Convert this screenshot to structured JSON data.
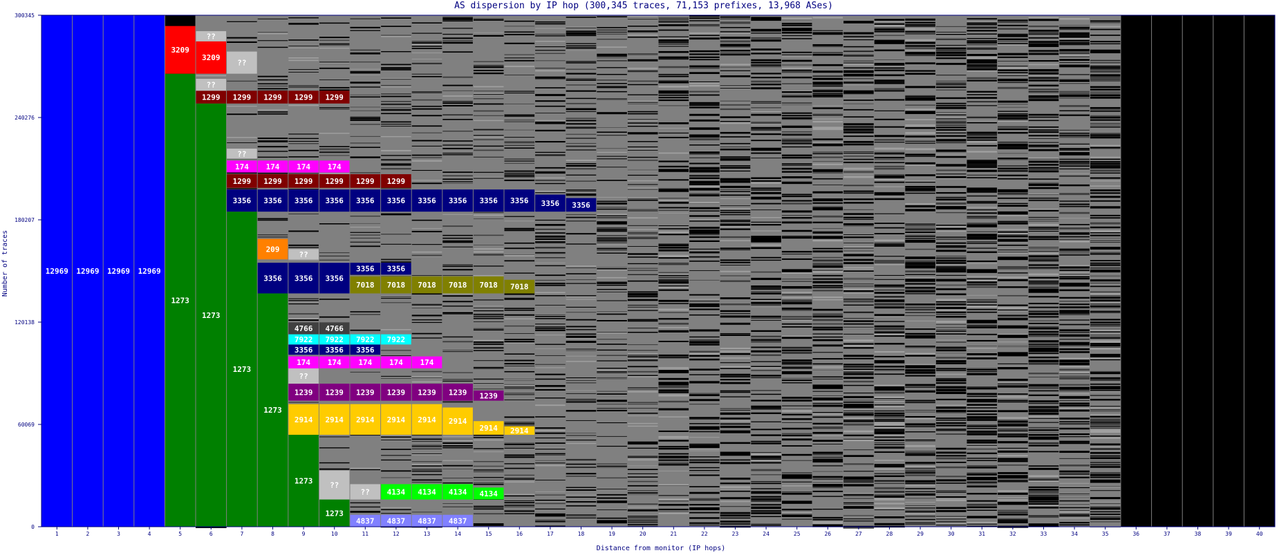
{
  "chart_data": {
    "type": "bar",
    "subtype": "stacked-segment dispersion",
    "title": "AS dispersion by IP hop (300,345 traces, 71,153 prefixes, 13,968 ASes)",
    "xlabel": "Distance from monitor (IP hops)",
    "ylabel": "Number of traces",
    "x": [
      1,
      2,
      3,
      4,
      5,
      6,
      7,
      8,
      9,
      10,
      11,
      12,
      13,
      14,
      15,
      16,
      17,
      18,
      19,
      20,
      21,
      22,
      23,
      24,
      25,
      26,
      27,
      28,
      29,
      30,
      31,
      32,
      33,
      34,
      35,
      36,
      37,
      38,
      39,
      40
    ],
    "ylim": [
      0,
      300345
    ],
    "yticks": [
      "0",
      "60069",
      "120138",
      "180207",
      "240276",
      "300345"
    ],
    "background_color": "#000000",
    "default_fill_color": "#808080",
    "labeled_segments": [
      {
        "hop": 1,
        "label": "12969",
        "from": 0,
        "to": 300345,
        "color": "#0000ff"
      },
      {
        "hop": 2,
        "label": "12969",
        "from": 0,
        "to": 300345,
        "color": "#0000ff"
      },
      {
        "hop": 3,
        "label": "12969",
        "from": 0,
        "to": 300345,
        "color": "#0000ff"
      },
      {
        "hop": 4,
        "label": "12969",
        "from": 0,
        "to": 300345,
        "color": "#0000ff"
      },
      {
        "hop": 5,
        "label": "1273",
        "from": 0,
        "to": 266000,
        "color": "#008000"
      },
      {
        "hop": 5,
        "label": "3209",
        "from": 266000,
        "to": 294000,
        "color": "#ff0000"
      },
      {
        "hop": 6,
        "label": "1273",
        "from": 0,
        "to": 248500,
        "color": "#008000"
      },
      {
        "hop": 6,
        "label": "1299",
        "from": 248500,
        "to": 256000,
        "color": "#800000"
      },
      {
        "hop": 6,
        "label": "??",
        "from": 256000,
        "to": 263000,
        "color": "#c0c0c0"
      },
      {
        "hop": 6,
        "label": "3209",
        "from": 266000,
        "to": 285000,
        "color": "#ff0000"
      },
      {
        "hop": 6,
        "label": "??",
        "from": 285000,
        "to": 291000,
        "color": "#c0c0c0"
      },
      {
        "hop": 7,
        "label": "1273",
        "from": 0,
        "to": 185000,
        "color": "#008000"
      },
      {
        "hop": 7,
        "label": "3356",
        "from": 185000,
        "to": 198000,
        "color": "#000080"
      },
      {
        "hop": 7,
        "label": "1299",
        "from": 199000,
        "to": 207000,
        "color": "#800000"
      },
      {
        "hop": 7,
        "label": "174",
        "from": 208000,
        "to": 215000,
        "color": "#ff00ff"
      },
      {
        "hop": 7,
        "label": "??",
        "from": 216000,
        "to": 222000,
        "color": "#c0c0c0"
      },
      {
        "hop": 7,
        "label": "1299",
        "from": 248500,
        "to": 256000,
        "color": "#800000"
      },
      {
        "hop": 7,
        "label": "??",
        "from": 266000,
        "to": 279000,
        "color": "#c0c0c0"
      },
      {
        "hop": 8,
        "label": "1273",
        "from": 0,
        "to": 137000,
        "color": "#008000"
      },
      {
        "hop": 8,
        "label": "3356",
        "from": 137000,
        "to": 155000,
        "color": "#000080"
      },
      {
        "hop": 8,
        "label": "209",
        "from": 157000,
        "to": 169000,
        "color": "#ff8000"
      },
      {
        "hop": 8,
        "label": "3356",
        "from": 185000,
        "to": 198000,
        "color": "#000080"
      },
      {
        "hop": 8,
        "label": "1299",
        "from": 199000,
        "to": 207000,
        "color": "#800000"
      },
      {
        "hop": 8,
        "label": "174",
        "from": 208000,
        "to": 215000,
        "color": "#ff00ff"
      },
      {
        "hop": 8,
        "label": "1299",
        "from": 248500,
        "to": 256000,
        "color": "#800000"
      },
      {
        "hop": 9,
        "label": "1273",
        "from": 0,
        "to": 54000,
        "color": "#008000"
      },
      {
        "hop": 9,
        "label": "2914",
        "from": 54000,
        "to": 72000,
        "color": "#ffcc00"
      },
      {
        "hop": 9,
        "label": "1239",
        "from": 74000,
        "to": 84000,
        "color": "#800080"
      },
      {
        "hop": 9,
        "label": "??",
        "from": 84000,
        "to": 93000,
        "color": "#c0c0c0"
      },
      {
        "hop": 9,
        "label": "174",
        "from": 93000,
        "to": 100000,
        "color": "#ff00ff"
      },
      {
        "hop": 9,
        "label": "3356",
        "from": 101000,
        "to": 107000,
        "color": "#000080"
      },
      {
        "hop": 9,
        "label": "7922",
        "from": 107000,
        "to": 113000,
        "color": "#00ffff"
      },
      {
        "hop": 9,
        "label": "4766",
        "from": 113000,
        "to": 120000,
        "color": "#404040"
      },
      {
        "hop": 9,
        "label": "3356",
        "from": 137000,
        "to": 155000,
        "color": "#000080"
      },
      {
        "hop": 9,
        "label": "??",
        "from": 157000,
        "to": 163000,
        "color": "#c0c0c0"
      },
      {
        "hop": 9,
        "label": "3356",
        "from": 185000,
        "to": 198000,
        "color": "#000080"
      },
      {
        "hop": 9,
        "label": "1299",
        "from": 199000,
        "to": 207000,
        "color": "#800000"
      },
      {
        "hop": 9,
        "label": "174",
        "from": 208000,
        "to": 215000,
        "color": "#ff00ff"
      },
      {
        "hop": 9,
        "label": "1299",
        "from": 248500,
        "to": 256000,
        "color": "#800000"
      },
      {
        "hop": 10,
        "label": "1273",
        "from": 0,
        "to": 16000,
        "color": "#008000"
      },
      {
        "hop": 10,
        "label": "??",
        "from": 16000,
        "to": 33000,
        "color": "#c0c0c0"
      },
      {
        "hop": 10,
        "label": "2914",
        "from": 54000,
        "to": 72000,
        "color": "#ffcc00"
      },
      {
        "hop": 10,
        "label": "1239",
        "from": 74000,
        "to": 84000,
        "color": "#800080"
      },
      {
        "hop": 10,
        "label": "174",
        "from": 93000,
        "to": 100000,
        "color": "#ff00ff"
      },
      {
        "hop": 10,
        "label": "3356",
        "from": 101000,
        "to": 107000,
        "color": "#000080"
      },
      {
        "hop": 10,
        "label": "7922",
        "from": 107000,
        "to": 113000,
        "color": "#00ffff"
      },
      {
        "hop": 10,
        "label": "4766",
        "from": 113000,
        "to": 120000,
        "color": "#404040"
      },
      {
        "hop": 10,
        "label": "3356",
        "from": 137000,
        "to": 155000,
        "color": "#000080"
      },
      {
        "hop": 10,
        "label": "3356",
        "from": 185000,
        "to": 198000,
        "color": "#000080"
      },
      {
        "hop": 10,
        "label": "1299",
        "from": 199000,
        "to": 207000,
        "color": "#800000"
      },
      {
        "hop": 10,
        "label": "174",
        "from": 208000,
        "to": 215000,
        "color": "#ff00ff"
      },
      {
        "hop": 10,
        "label": "1299",
        "from": 248500,
        "to": 256000,
        "color": "#800000"
      },
      {
        "hop": 11,
        "label": "4837",
        "from": 0,
        "to": 7000,
        "color": "#8080ff"
      },
      {
        "hop": 11,
        "label": "??",
        "from": 16000,
        "to": 25000,
        "color": "#c0c0c0"
      },
      {
        "hop": 11,
        "label": "2914",
        "from": 54000,
        "to": 72000,
        "color": "#ffcc00"
      },
      {
        "hop": 11,
        "label": "1239",
        "from": 74000,
        "to": 84000,
        "color": "#800080"
      },
      {
        "hop": 11,
        "label": "174",
        "from": 93000,
        "to": 100000,
        "color": "#ff00ff"
      },
      {
        "hop": 11,
        "label": "3356",
        "from": 101000,
        "to": 107000,
        "color": "#000080"
      },
      {
        "hop": 11,
        "label": "7922",
        "from": 107000,
        "to": 113000,
        "color": "#00ffff"
      },
      {
        "hop": 11,
        "label": "7018",
        "from": 137000,
        "to": 147000,
        "color": "#808000"
      },
      {
        "hop": 11,
        "label": "3356",
        "from": 148000,
        "to": 155000,
        "color": "#000080"
      },
      {
        "hop": 11,
        "label": "3356",
        "from": 185000,
        "to": 198000,
        "color": "#000080"
      },
      {
        "hop": 11,
        "label": "1299",
        "from": 199000,
        "to": 207000,
        "color": "#800000"
      },
      {
        "hop": 12,
        "label": "4837",
        "from": 0,
        "to": 7000,
        "color": "#8080ff"
      },
      {
        "hop": 12,
        "label": "4134",
        "from": 16000,
        "to": 25000,
        "color": "#00ff00"
      },
      {
        "hop": 12,
        "label": "2914",
        "from": 54000,
        "to": 72000,
        "color": "#ffcc00"
      },
      {
        "hop": 12,
        "label": "1239",
        "from": 74000,
        "to": 84000,
        "color": "#800080"
      },
      {
        "hop": 12,
        "label": "174",
        "from": 93000,
        "to": 100000,
        "color": "#ff00ff"
      },
      {
        "hop": 12,
        "label": "7922",
        "from": 107000,
        "to": 113000,
        "color": "#00ffff"
      },
      {
        "hop": 12,
        "label": "7018",
        "from": 137000,
        "to": 147000,
        "color": "#808000"
      },
      {
        "hop": 12,
        "label": "3356",
        "from": 148000,
        "to": 155000,
        "color": "#000080"
      },
      {
        "hop": 12,
        "label": "3356",
        "from": 185000,
        "to": 198000,
        "color": "#000080"
      },
      {
        "hop": 12,
        "label": "1299",
        "from": 199000,
        "to": 207000,
        "color": "#800000"
      },
      {
        "hop": 13,
        "label": "4837",
        "from": 0,
        "to": 7000,
        "color": "#8080ff"
      },
      {
        "hop": 13,
        "label": "4134",
        "from": 16000,
        "to": 25000,
        "color": "#00ff00"
      },
      {
        "hop": 13,
        "label": "2914",
        "from": 54000,
        "to": 72000,
        "color": "#ffcc00"
      },
      {
        "hop": 13,
        "label": "1239",
        "from": 74000,
        "to": 84000,
        "color": "#800080"
      },
      {
        "hop": 13,
        "label": "174",
        "from": 93000,
        "to": 100000,
        "color": "#ff00ff"
      },
      {
        "hop": 13,
        "label": "7018",
        "from": 137000,
        "to": 147000,
        "color": "#808000"
      },
      {
        "hop": 13,
        "label": "3356",
        "from": 185000,
        "to": 198000,
        "color": "#000080"
      },
      {
        "hop": 14,
        "label": "4837",
        "from": 0,
        "to": 7000,
        "color": "#8080ff"
      },
      {
        "hop": 14,
        "label": "4134",
        "from": 16000,
        "to": 25000,
        "color": "#00ff00"
      },
      {
        "hop": 14,
        "label": "2914",
        "from": 54000,
        "to": 70000,
        "color": "#ffcc00"
      },
      {
        "hop": 14,
        "label": "1239",
        "from": 74000,
        "to": 84000,
        "color": "#800080"
      },
      {
        "hop": 14,
        "label": "7018",
        "from": 137000,
        "to": 147000,
        "color": "#808000"
      },
      {
        "hop": 14,
        "label": "3356",
        "from": 185000,
        "to": 198000,
        "color": "#000080"
      },
      {
        "hop": 15,
        "label": "4134",
        "from": 16000,
        "to": 23000,
        "color": "#00ff00"
      },
      {
        "hop": 15,
        "label": "2914",
        "from": 54000,
        "to": 62000,
        "color": "#ffcc00"
      },
      {
        "hop": 15,
        "label": "1239",
        "from": 74000,
        "to": 80000,
        "color": "#800080"
      },
      {
        "hop": 15,
        "label": "7018",
        "from": 137000,
        "to": 147000,
        "color": "#808000"
      },
      {
        "hop": 15,
        "label": "3356",
        "from": 185000,
        "to": 198000,
        "color": "#000080"
      },
      {
        "hop": 16,
        "label": "2914",
        "from": 54000,
        "to": 59000,
        "color": "#ffcc00"
      },
      {
        "hop": 16,
        "label": "7018",
        "from": 137000,
        "to": 145000,
        "color": "#808000"
      },
      {
        "hop": 16,
        "label": "3356",
        "from": 185000,
        "to": 198000,
        "color": "#000080"
      },
      {
        "hop": 17,
        "label": "3356",
        "from": 185000,
        "to": 195000,
        "color": "#000080"
      },
      {
        "hop": 18,
        "label": "3356",
        "from": 185000,
        "to": 193000,
        "color": "#000080"
      }
    ],
    "grey_extent_per_hop": [
      0,
      0,
      0,
      0,
      0,
      300345,
      300345,
      300345,
      300345,
      300345,
      300345,
      300345,
      300345,
      300345,
      300345,
      300345,
      300345,
      300345,
      300345,
      300345,
      300345,
      300345,
      300345,
      300345,
      300345,
      300345,
      300345,
      300345,
      300345,
      300345,
      300345,
      300345,
      300345,
      300345,
      300345,
      0,
      0,
      0,
      0,
      0
    ],
    "colors": {
      "axis": "#000080",
      "grid_line": "#808080",
      "unlabeled_as": "#808080",
      "unlabeled_as_dark": "#404040",
      "background": "#000000",
      "frame": "#000080"
    }
  }
}
